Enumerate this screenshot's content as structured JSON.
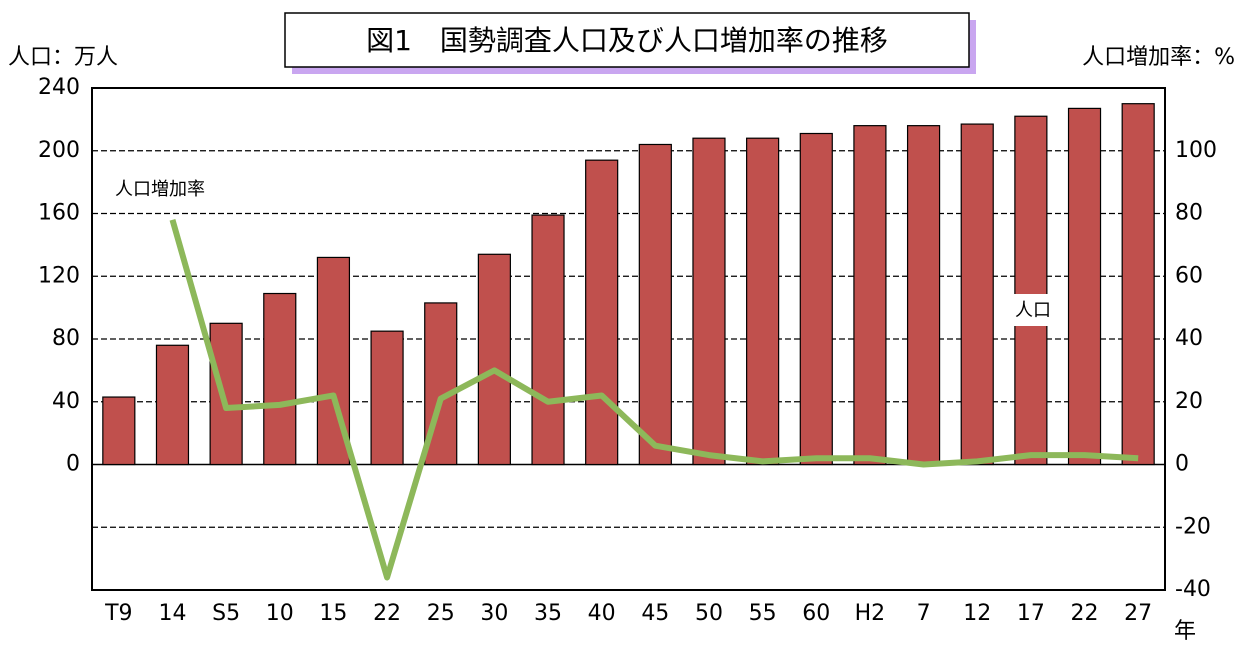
{
  "chart_data": {
    "type": "bar_line",
    "title": "図1　国勢調査人口及び人口増加率の推移",
    "y_label": "人口：万人",
    "y2_label": "人口増加率：%",
    "x_label": "年",
    "categories": [
      "T9",
      "14",
      "S5",
      "10",
      "15",
      "22",
      "25",
      "30",
      "35",
      "40",
      "45",
      "50",
      "55",
      "60",
      "H2",
      "7",
      "12",
      "17",
      "22",
      "27"
    ],
    "series": [
      {
        "name": "人口",
        "type": "bar",
        "color": "#c0504d",
        "values": [
          43,
          76,
          90,
          109,
          132,
          85,
          103,
          134,
          159,
          194,
          204,
          208,
          208,
          211,
          216,
          216,
          217,
          222,
          227,
          230
        ]
      },
      {
        "name": "人口増加率",
        "type": "line",
        "axis": "y2",
        "color": "#8db85a",
        "values": [
          null,
          78,
          18,
          19,
          22,
          -36,
          21,
          30,
          20,
          22,
          6,
          3,
          1,
          2,
          2,
          0,
          1,
          3,
          3,
          2
        ]
      }
    ],
    "ylim": [
      -80,
      240
    ],
    "yticks": [
      0,
      40,
      80,
      120,
      160,
      200,
      240
    ],
    "y2lim": [
      -40,
      120
    ],
    "y2ticks": [
      -40,
      -20,
      0,
      20,
      40,
      60,
      80,
      100
    ],
    "grid": true
  }
}
